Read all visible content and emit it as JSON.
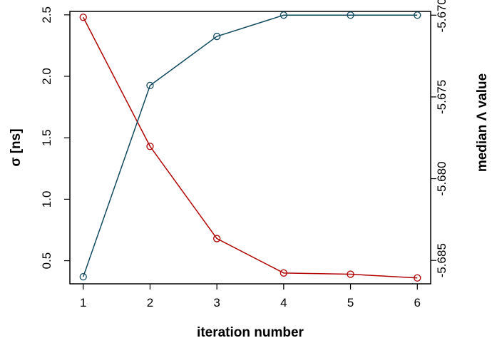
{
  "chart_data": {
    "type": "line",
    "xlabel": "iteration number",
    "ylabel_left": "σ [ns]",
    "ylabel_right": "median Λ value",
    "x": [
      1,
      2,
      3,
      4,
      5,
      6
    ],
    "x_ticks": [
      "1",
      "2",
      "3",
      "4",
      "5",
      "6"
    ],
    "y_left_ticks": [
      "0.5",
      "1.0",
      "1.5",
      "2.0",
      "2.5"
    ],
    "y_left_tick_values": [
      0.5,
      1.0,
      1.5,
      2.0,
      2.5
    ],
    "y_right_ticks": [
      "-5.685",
      "-5.680",
      "-5.675",
      "-5.670"
    ],
    "y_right_tick_values": [
      -5.685,
      -5.68,
      -5.675,
      -5.67
    ],
    "series": [
      {
        "axis": "left",
        "color": "#b00000",
        "marker": "open-circle",
        "values": [
          2.48,
          1.43,
          0.68,
          0.4,
          0.39,
          0.36
        ]
      },
      {
        "axis": "right",
        "color": "#0f4a5e",
        "marker": "open-circle",
        "values": [
          -5.686,
          -5.6743,
          -5.6713,
          -5.67,
          -5.67,
          -5.67
        ]
      }
    ],
    "ylim_left": [
      0.312,
      2.528
    ],
    "ylim_right": [
      -5.68643,
      -5.66977
    ],
    "xlim": [
      0.8,
      6.2
    ],
    "grid": false,
    "legend": "none"
  }
}
